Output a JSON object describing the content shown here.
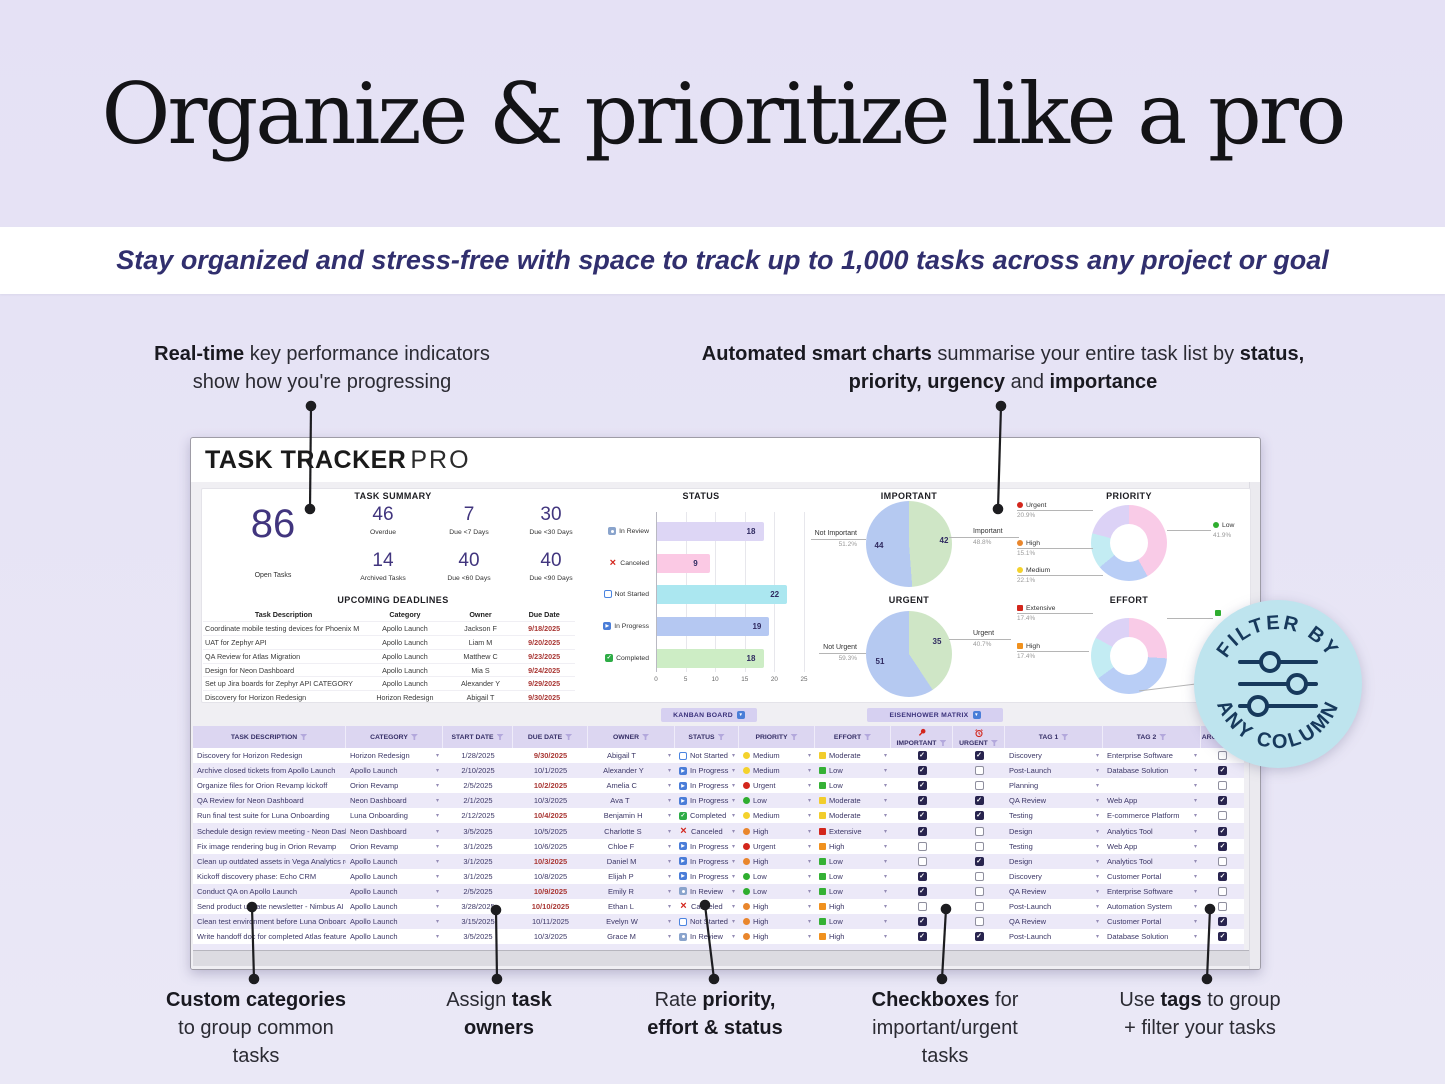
{
  "hero": {
    "title": "Organize & prioritize like a pro"
  },
  "subtitle": "Stay organized and stress-free with space to track up to 1,000 tasks across any project or goal",
  "annotations": {
    "kpi": {
      "lines": [
        [
          {
            "t": "Real-time",
            "b": true
          },
          {
            "t": " key performance indicators",
            "b": false
          }
        ],
        [
          {
            "t": "show how you're progressing",
            "b": false
          }
        ]
      ]
    },
    "charts": {
      "lines": [
        [
          {
            "t": "Automated smart charts",
            "b": true
          },
          {
            "t": " summarise your entire task list by ",
            "b": false
          },
          {
            "t": "status,",
            "b": true
          }
        ],
        [
          {
            "t": "priority,",
            "b": true
          },
          {
            "t": " ",
            "b": false
          },
          {
            "t": "urgency",
            "b": true
          },
          {
            "t": " and ",
            "b": false
          },
          {
            "t": "importance",
            "b": true
          }
        ]
      ]
    },
    "categories": {
      "lines": [
        [
          {
            "t": "Custom categories",
            "b": true
          }
        ],
        [
          {
            "t": "to group common",
            "b": false
          }
        ],
        [
          {
            "t": "tasks",
            "b": false
          }
        ]
      ]
    },
    "owners": {
      "lines": [
        [
          {
            "t": "Assign ",
            "b": false
          },
          {
            "t": "task",
            "b": true
          }
        ],
        [
          {
            "t": "owners",
            "b": true
          }
        ]
      ]
    },
    "rate": {
      "lines": [
        [
          {
            "t": "Rate ",
            "b": false
          },
          {
            "t": "priority,",
            "b": true
          }
        ],
        [
          {
            "t": "effort & status",
            "b": true
          }
        ]
      ]
    },
    "checkboxes": {
      "lines": [
        [
          {
            "t": "Checkboxes",
            "b": true
          },
          {
            "t": " for",
            "b": false
          }
        ],
        [
          {
            "t": "important/urgent",
            "b": false
          }
        ],
        [
          {
            "t": "tasks",
            "b": false
          }
        ]
      ]
    },
    "tags": {
      "lines": [
        [
          {
            "t": "Use ",
            "b": false
          },
          {
            "t": "tags",
            "b": true
          },
          {
            "t": " to  group",
            "b": false
          }
        ],
        [
          {
            "t": "+ filter your tasks",
            "b": false
          }
        ]
      ]
    }
  },
  "dashboard": {
    "title_bold": "TASK TRACKER",
    "title_light": "PRO",
    "summary": {
      "heading": "TASK SUMMARY",
      "open": {
        "value": "86",
        "label": "Open Tasks"
      },
      "kpis": [
        {
          "value": "46",
          "label": "Overdue"
        },
        {
          "value": "7",
          "label": "Due <7 Days"
        },
        {
          "value": "30",
          "label": "Due <30 Days"
        },
        {
          "value": "14",
          "label": "Archived Tasks"
        },
        {
          "value": "40",
          "label": "Due <60 Days"
        },
        {
          "value": "40",
          "label": "Due <90 Days"
        }
      ]
    },
    "deadlines": {
      "heading": "UPCOMING DEADLINES",
      "columns": [
        "Task Description",
        "Category",
        "Owner",
        "Due Date"
      ],
      "rows": [
        [
          "Coordinate mobile testing devices for Phoenix M",
          "Apollo Launch",
          "Jackson F",
          "9/18/2025"
        ],
        [
          "UAT for Zephyr API",
          "Apollo Launch",
          "Liam M",
          "9/20/2025"
        ],
        [
          "QA Review for Atlas Migration",
          "Apollo Launch",
          "Matthew C",
          "9/23/2025"
        ],
        [
          "Design for Neon Dashboard",
          "Apollo Launch",
          "Mia S",
          "9/24/2025"
        ],
        [
          "Set up Jira boards for Zephyr API CATEGORY",
          "Apollo Launch",
          "Alexander Y",
          "9/29/2025"
        ],
        [
          "Discovery for Horizon Redesign",
          "Horizon Redesign",
          "Abigail T",
          "9/30/2025"
        ]
      ]
    },
    "buttons": {
      "kanban": "KANBAN BOARD",
      "eisenhower": "EISENHOWER MATRIX"
    }
  },
  "chart_data": [
    {
      "type": "bar",
      "title": "STATUS",
      "orientation": "horizontal",
      "categories": [
        "In Review",
        "Canceled",
        "Not Started",
        "In Progress",
        "Completed"
      ],
      "values": [
        18,
        9,
        22,
        19,
        18
      ],
      "bar_colors": [
        "#ddd6f5",
        "#fbc9e4",
        "#abe7f0",
        "#b5c8f2",
        "#cdedc5"
      ],
      "xlim": [
        0,
        25
      ],
      "xticks": [
        0,
        5,
        10,
        15,
        20,
        25
      ],
      "grid": true
    },
    {
      "type": "pie",
      "title": "IMPORTANT",
      "slices": [
        {
          "label": "Important",
          "value": 42,
          "pct": "48.8%",
          "color": "#cfe6c6"
        },
        {
          "label": "Not Important",
          "value": 44,
          "pct": "51.2%",
          "color": "#b5c9f1"
        }
      ]
    },
    {
      "type": "pie",
      "title": "URGENT",
      "slices": [
        {
          "label": "Urgent",
          "value": 35,
          "pct": "40.7%",
          "color": "#cfe6c6"
        },
        {
          "label": "Not Urgent",
          "value": 51,
          "pct": "59.3%",
          "color": "#b5c9f1"
        }
      ]
    },
    {
      "type": "donut",
      "title": "PRIORITY",
      "slices": [
        {
          "pct": 41.9,
          "color": "#f9cbe7"
        },
        {
          "pct": 22.1,
          "color": "#b9cef6"
        },
        {
          "pct": 15.1,
          "color": "#c3ecf3"
        },
        {
          "pct": 20.9,
          "color": "#dcd2f6"
        }
      ],
      "legend": [
        {
          "label": "Urgent",
          "pct": "20.9%",
          "color": "#d3261c"
        },
        {
          "label": "High",
          "pct": "15.1%",
          "color": "#e9862c"
        },
        {
          "label": "Medium",
          "pct": "22.1%",
          "color": "#f4d22c"
        },
        {
          "label": "Low",
          "pct": "41.9%",
          "color": "#2fae2f"
        }
      ]
    },
    {
      "type": "donut",
      "title": "EFFORT",
      "slices": [
        {
          "pct": 26,
          "color": "#f9cbe7"
        },
        {
          "pct": 39,
          "color": "#b9cef6"
        },
        {
          "pct": 18,
          "color": "#c3ecf3"
        },
        {
          "pct": 17,
          "color": "#dcd2f6"
        }
      ],
      "legend": [
        {
          "label": "Extensive",
          "pct": "17.4%",
          "color": "#d3261c"
        },
        {
          "label": "High",
          "pct": "17.4%",
          "color": "#f0911e"
        },
        {
          "label": "",
          "pct": "",
          "color": "#2fae2f"
        }
      ]
    }
  ],
  "table": {
    "columns": [
      "TASK DESCRIPTION",
      "CATEGORY",
      "START DATE",
      "DUE DATE",
      "OWNER",
      "STATUS",
      "PRIORITY",
      "EFFORT",
      "IMPORTANT",
      "URGENT",
      "TAG 1",
      "TAG 2",
      "ARCHIVE"
    ],
    "rows": [
      {
        "desc": "Discovery for Horizon Redesign",
        "category": "Horizon Redesign",
        "start": "1/28/2025",
        "due": "9/30/2025",
        "due_overdue": true,
        "owner": "Abigail T",
        "status": "Not Started",
        "priority": "Medium",
        "effort": "Moderate",
        "important": true,
        "urgent": true,
        "tag1": "Discovery",
        "tag2": "Enterprise Software",
        "archived": false
      },
      {
        "desc": "Archive closed tickets from Apollo Launch",
        "category": "Apollo Launch",
        "start": "2/10/2025",
        "due": "10/1/2025",
        "due_overdue": false,
        "owner": "Alexander Y",
        "status": "In Progress",
        "priority": "Medium",
        "effort": "Low",
        "important": true,
        "urgent": false,
        "tag1": "Post-Launch",
        "tag2": "Database Solution",
        "archived": true
      },
      {
        "desc": "Organize files for Orion Revamp kickoff",
        "category": "Orion Revamp",
        "start": "2/5/2025",
        "due": "10/2/2025",
        "due_overdue": true,
        "owner": "Amelia C",
        "status": "In Progress",
        "priority": "Urgent",
        "effort": "Low",
        "important": true,
        "urgent": false,
        "tag1": "Planning",
        "tag2": "",
        "archived": false
      },
      {
        "desc": "QA Review for Neon Dashboard",
        "category": "Neon Dashboard",
        "start": "2/1/2025",
        "due": "10/3/2025",
        "due_overdue": false,
        "owner": "Ava T",
        "status": "In Progress",
        "priority": "Low",
        "effort": "Moderate",
        "important": true,
        "urgent": true,
        "tag1": "QA Review",
        "tag2": "Web App",
        "archived": true
      },
      {
        "desc": "Run final test suite for Luna Onboarding",
        "category": "Luna Onboarding",
        "start": "2/12/2025",
        "due": "10/4/2025",
        "due_overdue": true,
        "owner": "Benjamin H",
        "status": "Completed",
        "priority": "Medium",
        "effort": "Moderate",
        "important": true,
        "urgent": true,
        "tag1": "Testing",
        "tag2": "E-commerce Platform",
        "archived": false
      },
      {
        "desc": "Schedule design review meeting - Neon Dashboard",
        "category": "Neon Dashboard",
        "start": "3/5/2025",
        "due": "10/5/2025",
        "due_overdue": false,
        "owner": "Charlotte S",
        "status": "Canceled",
        "priority": "High",
        "effort": "Extensive",
        "important": true,
        "urgent": false,
        "tag1": "Design",
        "tag2": "Analytics Tool",
        "archived": true
      },
      {
        "desc": "Fix image rendering bug in Orion Revamp",
        "category": "Orion Revamp",
        "start": "3/1/2025",
        "due": "10/6/2025",
        "due_overdue": false,
        "owner": "Chloe F",
        "status": "In Progress",
        "priority": "Urgent",
        "effort": "High",
        "important": false,
        "urgent": false,
        "tag1": "Testing",
        "tag2": "Web App",
        "archived": true
      },
      {
        "desc": "Clean up outdated assets in Vega Analytics repo",
        "category": "Apollo Launch",
        "start": "3/1/2025",
        "due": "10/3/2025",
        "due_overdue": true,
        "owner": "Daniel M",
        "status": "In Progress",
        "priority": "High",
        "effort": "Low",
        "important": false,
        "urgent": true,
        "tag1": "Design",
        "tag2": "Analytics Tool",
        "archived": false
      },
      {
        "desc": "Kickoff discovery phase: Echo CRM",
        "category": "Apollo Launch",
        "start": "3/1/2025",
        "due": "10/8/2025",
        "due_overdue": false,
        "owner": "Elijah P",
        "status": "In Progress",
        "priority": "Low",
        "effort": "Low",
        "important": true,
        "urgent": false,
        "tag1": "Discovery",
        "tag2": "Customer Portal",
        "archived": true
      },
      {
        "desc": "Conduct QA on Apollo Launch",
        "category": "Apollo Launch",
        "start": "2/5/2025",
        "due": "10/9/2025",
        "due_overdue": true,
        "owner": "Emily R",
        "status": "In Review",
        "priority": "Low",
        "effort": "Low",
        "important": true,
        "urgent": false,
        "tag1": "QA Review",
        "tag2": "Enterprise Software",
        "archived": false
      },
      {
        "desc": "Send product update newsletter - Nimbus AI",
        "category": "Apollo Launch",
        "start": "3/28/2025",
        "due": "10/10/2025",
        "due_overdue": true,
        "owner": "Ethan L",
        "status": "Canceled",
        "priority": "High",
        "effort": "High",
        "important": false,
        "urgent": false,
        "tag1": "Post-Launch",
        "tag2": "Automation System",
        "archived": false
      },
      {
        "desc": "Clean test environment before Luna Onboarding",
        "category": "Apollo Launch",
        "start": "3/15/2025",
        "due": "10/11/2025",
        "due_overdue": false,
        "owner": "Evelyn W",
        "status": "Not Started",
        "priority": "High",
        "effort": "Low",
        "important": true,
        "urgent": false,
        "tag1": "QA Review",
        "tag2": "Customer Portal",
        "archived": true
      },
      {
        "desc": "Write handoff doc for completed Atlas features",
        "category": "Apollo Launch",
        "start": "3/5/2025",
        "due": "10/3/2025",
        "due_overdue": false,
        "owner": "Grace M",
        "status": "In Review",
        "priority": "High",
        "effort": "High",
        "important": true,
        "urgent": true,
        "tag1": "Post-Launch",
        "tag2": "Database Solution",
        "archived": true
      }
    ]
  },
  "badge": {
    "top": "FILTER BY",
    "bottom": "ANY COLUMN"
  },
  "colors": {
    "page_bg": "#e6e2f5",
    "subtitle_color": "#312f6e",
    "kpi_number": "#41357e",
    "overdue_red": "#a93734",
    "checkbox_checked": "#28244e",
    "badge_bg": "#bee4ee",
    "badge_text": "#17395c",
    "priority": {
      "Urgent": "#d3261c",
      "High": "#e9862c",
      "Medium": "#f4d22c",
      "Low": "#2fae2f"
    },
    "effort": {
      "Extensive": "#d3261c",
      "High": "#f0911e",
      "Moderate": "#f2cd2c",
      "Low": "#35b135"
    },
    "status": {
      "Not Started": "#4a84e0",
      "In Progress": "#4a7dd8",
      "Completed": "#2eac46",
      "Canceled": "#d3261c",
      "In Review": "#8aa4cc"
    }
  }
}
